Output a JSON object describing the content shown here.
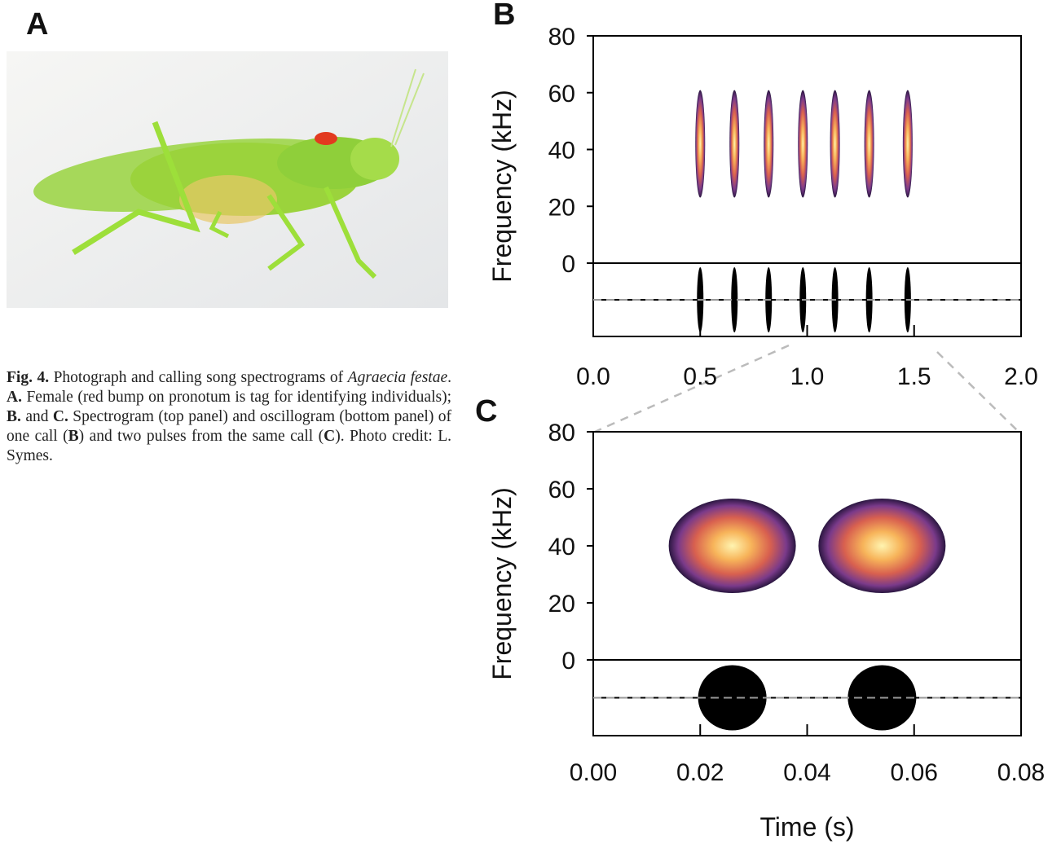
{
  "photo_label": "A",
  "caption": [
    {
      "text": "Fig. 4.",
      "style": "bold"
    },
    {
      "text": " Photograph and calling song spectrograms of ",
      "style": "normal"
    },
    {
      "text": "Agraecia festae",
      "style": "italic"
    },
    {
      "text": ". ",
      "style": "normal"
    },
    {
      "text": "A.",
      "style": "bold"
    },
    {
      "text": " Female (red bump on pronotum is tag for identifying individuals); ",
      "style": "normal"
    },
    {
      "text": "B.",
      "style": "bold"
    },
    {
      "text": " and ",
      "style": "normal"
    },
    {
      "text": "C.",
      "style": "bold"
    },
    {
      "text": " Spectrogram (top panel) and oscillogram (bottom panel) of one call (",
      "style": "normal"
    },
    {
      "text": "B",
      "style": "bold"
    },
    {
      "text": ") and two pulses from the same call (",
      "style": "normal"
    },
    {
      "text": "C",
      "style": "bold"
    },
    {
      "text": "). Photo credit: L. Symes.",
      "style": "normal"
    }
  ],
  "chart_data": [
    {
      "type": "spectrogram",
      "panel": "B",
      "ylabel": "Frequency (kHz)",
      "ylim": [
        0,
        80
      ],
      "yticks": [
        0,
        20,
        40,
        60,
        80
      ],
      "xlim": [
        0,
        2
      ],
      "xticks": [
        {
          "value": 0,
          "label": "0.0"
        },
        {
          "value": 0.5,
          "label": "0.5"
        },
        {
          "value": 1,
          "label": "1.0"
        },
        {
          "value": 1.5,
          "label": "1.5"
        },
        {
          "value": 2,
          "label": "2.0"
        }
      ],
      "x": [
        0.5,
        0.66,
        0.82,
        0.98,
        1.13,
        1.29,
        1.47
      ],
      "values": [
        42,
        42,
        42,
        42,
        42,
        42,
        42
      ]
    },
    {
      "type": "spectrogram",
      "panel": "C",
      "ylabel": "Frequency (kHz)",
      "xlabel": "Time (s)",
      "ylim": [
        0,
        80
      ],
      "yticks": [
        0,
        20,
        40,
        60,
        80
      ],
      "xlim": [
        0,
        0.08
      ],
      "xticks": [
        {
          "value": 0,
          "label": "0.00"
        },
        {
          "value": 0.02,
          "label": "0.02"
        },
        {
          "value": 0.04,
          "label": "0.04"
        },
        {
          "value": 0.06,
          "label": "0.06"
        },
        {
          "value": 0.08,
          "label": "0.08"
        }
      ],
      "x": [
        0.026,
        0.054
      ],
      "values": [
        40,
        40
      ]
    }
  ]
}
